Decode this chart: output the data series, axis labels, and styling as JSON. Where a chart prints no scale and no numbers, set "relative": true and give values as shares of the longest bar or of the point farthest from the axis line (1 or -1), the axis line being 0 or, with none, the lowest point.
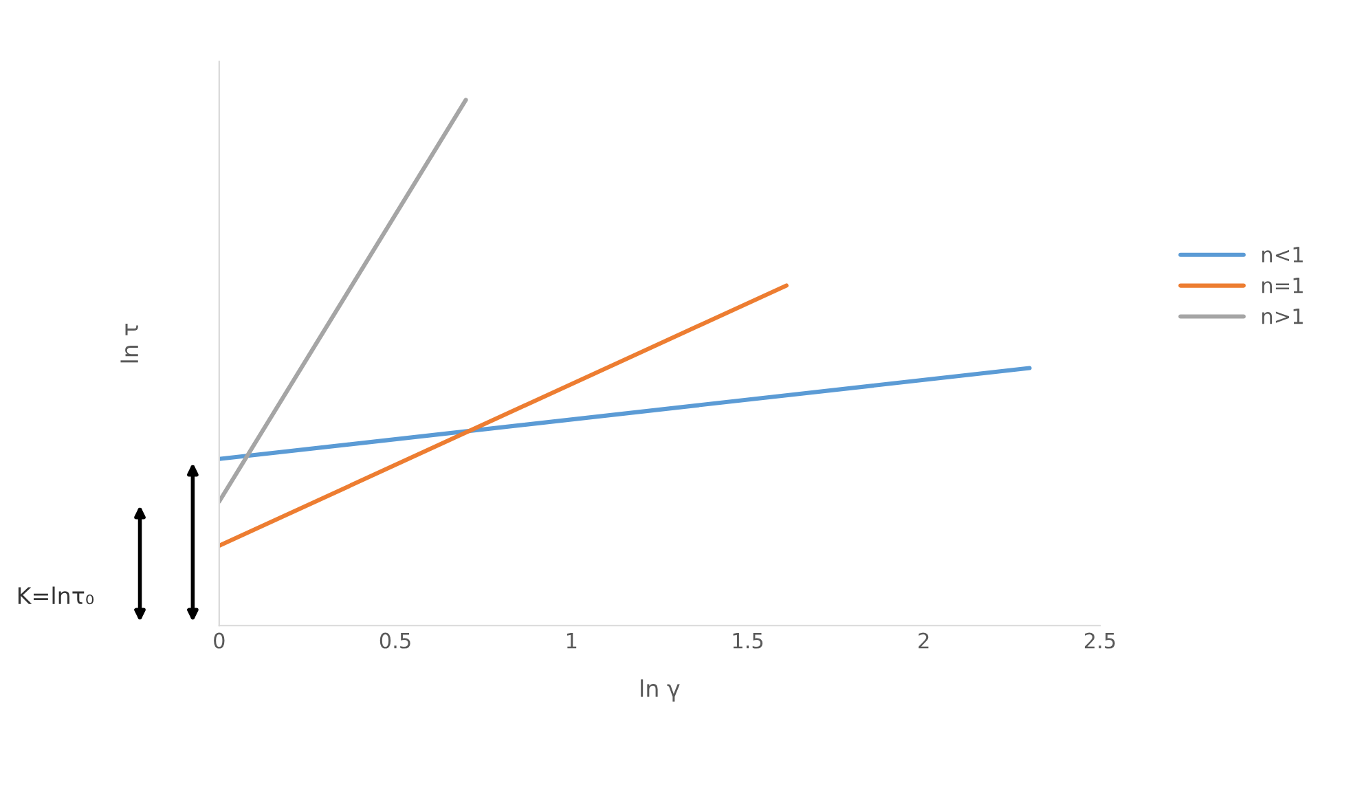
{
  "chart_data": {
    "type": "line",
    "relative": true,
    "xlabel": "ln γ",
    "ylabel": "ln τ",
    "xlim": [
      0,
      2.5
    ],
    "xticks": [
      0,
      0.5,
      1,
      1.5,
      2,
      2.5
    ],
    "series": [
      {
        "name": "n<1",
        "color": "#5b9bd5",
        "x": [
          0,
          2.3
        ],
        "values": [
          0.317,
          0.49
        ]
      },
      {
        "name": "n=1",
        "color": "#ed7d31",
        "x": [
          0,
          1.61
        ],
        "values": [
          0.152,
          0.647
        ]
      },
      {
        "name": "n>1",
        "color": "#a5a5a5",
        "x": [
          0,
          0.7
        ],
        "values": [
          0.236,
          1
        ]
      }
    ],
    "annotations": [
      "K=lnτ₀"
    ],
    "legend": "right",
    "grid": false,
    "marker": "none",
    "line_style": "solid"
  }
}
